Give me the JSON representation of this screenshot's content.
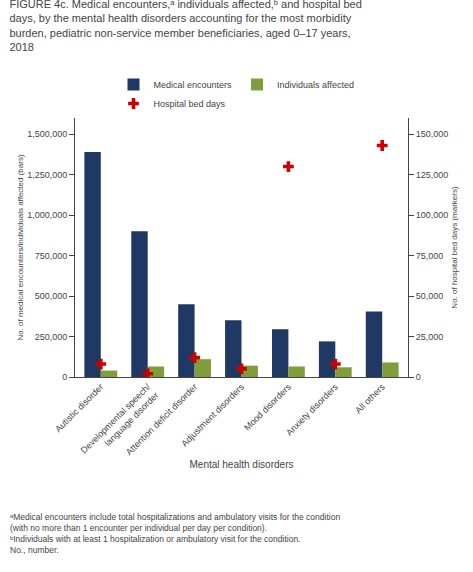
{
  "chart_data": {
    "type": "bar",
    "title": "FIGURE 4c. Medical encounters,ᵃ individuals affected,ᵇ and hospital bed days, by the mental health disorders accounting for the most morbidity burden, pediatric non-service member beneficiaries, aged 0–17 years, 2018",
    "xlabel": "Mental health disorders",
    "ylabel": "No. of medical encounters/individuals affected (bars)",
    "y2label": "No. of hospital bed days (markers)",
    "categories": [
      "Autistic disorder",
      "Developmental speech/\nlanguage disorder",
      "Attention deficit disorder",
      "Adjustment disorders",
      "Mood disorders",
      "Anxiety disorders",
      "All others"
    ],
    "series": [
      {
        "name": "Medical encounters",
        "type": "bar",
        "color": "#1f3864",
        "values": [
          1390000,
          900000,
          450000,
          350000,
          295000,
          220000,
          405000
        ]
      },
      {
        "name": "Individuals affected",
        "type": "bar",
        "color": "#7f9e3b",
        "values": [
          40000,
          65000,
          110000,
          70000,
          65000,
          60000,
          90000
        ]
      },
      {
        "name": "Hospital bed days",
        "type": "scatter",
        "axis": "y2",
        "marker": "cross",
        "color": "#cc0000",
        "values": [
          8000,
          2000,
          12000,
          5000,
          130000,
          8000,
          143000
        ]
      }
    ],
    "ylim": [
      0,
      1600000
    ],
    "yticks": [
      0,
      {
        "value": 250000,
        "label": "250,000"
      },
      {
        "value": 500000,
        "label": "500,000"
      },
      {
        "value": 750000,
        "label": "750,000"
      },
      {
        "value": 1000000,
        "label": "1,000,000"
      },
      {
        "value": 1250000,
        "label": "1,250,000"
      },
      {
        "value": 1500000,
        "label": "1,500,000"
      }
    ],
    "y2lim": [
      0,
      160000
    ],
    "y2ticks": [
      0,
      {
        "value": 25000,
        "label": "25,000"
      },
      {
        "value": 50000,
        "label": "50,000"
      },
      {
        "value": 75000,
        "label": "75,000"
      },
      {
        "value": 100000,
        "label": "100,000"
      },
      {
        "value": 125000,
        "label": "125,000"
      },
      {
        "value": 150000,
        "label": "150,000"
      }
    ],
    "grid": false,
    "legend": "top",
    "annotations": [
      "ᵃMedical encounters include total hospitalizations and ambulatory visits for the condition",
      "(with no more than 1 encounter per individual per day per condition).",
      "ᵇIndividuals with at least 1 hospitalization or ambulatory visit for the condition.",
      "No., number."
    ]
  }
}
